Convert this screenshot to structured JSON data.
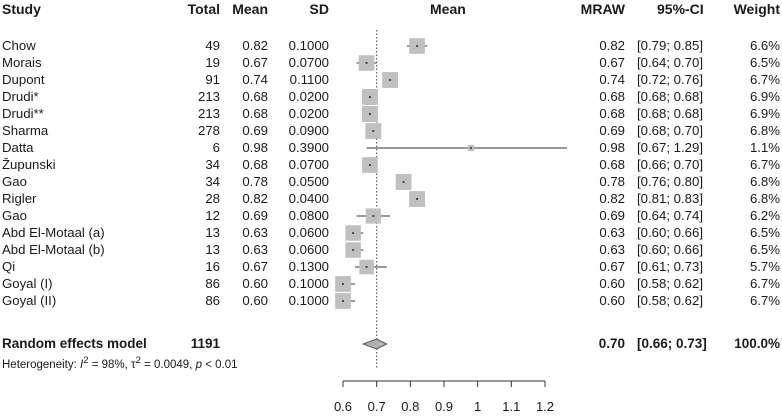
{
  "headers": {
    "study": "Study",
    "total": "Total",
    "mean": "Mean",
    "sd": "SD",
    "plot": "Mean",
    "mraw": "MRAW",
    "ci": "95%-CI",
    "weight": "Weight"
  },
  "studies": [
    {
      "study": "Chow",
      "total": "49",
      "mean": "0.82",
      "sd": "0.1000",
      "mraw": "0.82",
      "ci": "[0.79; 0.85]",
      "weight": "6.6%"
    },
    {
      "study": "Morais",
      "total": "19",
      "mean": "0.67",
      "sd": "0.0700",
      "mraw": "0.67",
      "ci": "[0.64; 0.70]",
      "weight": "6.5%"
    },
    {
      "study": "Dupont",
      "total": "91",
      "mean": "0.74",
      "sd": "0.1100",
      "mraw": "0.74",
      "ci": "[0.72; 0.76]",
      "weight": "6.7%"
    },
    {
      "study": "Drudi*",
      "total": "213",
      "mean": "0.68",
      "sd": "0.0200",
      "mraw": "0.68",
      "ci": "[0.68; 0.68]",
      "weight": "6.9%"
    },
    {
      "study": "Drudi**",
      "total": "213",
      "mean": "0.68",
      "sd": "0.0200",
      "mraw": "0.68",
      "ci": "[0.68; 0.68]",
      "weight": "6.9%"
    },
    {
      "study": "Sharma",
      "total": "278",
      "mean": "0.69",
      "sd": "0.0900",
      "mraw": "0.69",
      "ci": "[0.68; 0.70]",
      "weight": "6.8%"
    },
    {
      "study": "Datta",
      "total": "6",
      "mean": "0.98",
      "sd": "0.3900",
      "mraw": "0.98",
      "ci": "[0.67; 1.29]",
      "weight": "1.1%"
    },
    {
      "study": "Župunski",
      "total": "34",
      "mean": "0.68",
      "sd": "0.0700",
      "mraw": "0.68",
      "ci": "[0.66; 0.70]",
      "weight": "6.7%"
    },
    {
      "study": "Gao",
      "total": "34",
      "mean": "0.78",
      "sd": "0.0500",
      "mraw": "0.78",
      "ci": "[0.76; 0.80]",
      "weight": "6.8%"
    },
    {
      "study": "Rigler",
      "total": "28",
      "mean": "0.82",
      "sd": "0.0400",
      "mraw": "0.82",
      "ci": "[0.81; 0.83]",
      "weight": "6.8%"
    },
    {
      "study": "Gao",
      "total": "12",
      "mean": "0.69",
      "sd": "0.0800",
      "mraw": "0.69",
      "ci": "[0.64; 0.74]",
      "weight": "6.2%"
    },
    {
      "study": "Abd El-Motaal (a)",
      "total": "13",
      "mean": "0.63",
      "sd": "0.0600",
      "mraw": "0.63",
      "ci": "[0.60; 0.66]",
      "weight": "6.5%"
    },
    {
      "study": "Abd El-Motaal (b)",
      "total": "13",
      "mean": "0.63",
      "sd": "0.0600",
      "mraw": "0.63",
      "ci": "[0.60; 0.66]",
      "weight": "6.5%"
    },
    {
      "study": "Qi",
      "total": "16",
      "mean": "0.67",
      "sd": "0.1300",
      "mraw": "0.67",
      "ci": "[0.61; 0.73]",
      "weight": "5.7%"
    },
    {
      "study": "Goyal (I)",
      "total": "86",
      "mean": "0.60",
      "sd": "0.1000",
      "mraw": "0.60",
      "ci": "[0.58; 0.62]",
      "weight": "6.7%"
    },
    {
      "study": "Goyal (II)",
      "total": "86",
      "mean": "0.60",
      "sd": "0.1000",
      "mraw": "0.60",
      "ci": "[0.58; 0.62]",
      "weight": "6.7%"
    }
  ],
  "pooled": {
    "label": "Random effects model",
    "total": "1191",
    "mraw": "0.70",
    "ci": "[0.66; 0.73]",
    "weight": "100.0%"
  },
  "heterogeneity": {
    "prefix": "Heterogeneity: ",
    "i2_symbol": "I",
    "i2_value": " = 98%, ",
    "tau_symbol": "τ",
    "tau_value": " = 0.0049, ",
    "p_symbol": "p",
    "p_value": " < 0.01"
  },
  "chart_data": {
    "type": "forest",
    "title": "",
    "xlabel": "",
    "ylabel": "",
    "xlim": [
      0.6,
      1.2
    ],
    "ticks": [
      0.6,
      0.7,
      0.8,
      0.9,
      1,
      1.1,
      1.2
    ],
    "tick_labels": [
      "0.6",
      "0.7",
      "0.8",
      "0.9",
      "1",
      "1.1",
      "1.2"
    ],
    "reference_line": 0.7,
    "points": [
      {
        "study": "Chow",
        "mean": 0.82,
        "lower": 0.79,
        "upper": 0.85,
        "weight": 6.6
      },
      {
        "study": "Morais",
        "mean": 0.67,
        "lower": 0.64,
        "upper": 0.7,
        "weight": 6.5
      },
      {
        "study": "Dupont",
        "mean": 0.74,
        "lower": 0.72,
        "upper": 0.76,
        "weight": 6.7
      },
      {
        "study": "Drudi*",
        "mean": 0.68,
        "lower": 0.68,
        "upper": 0.68,
        "weight": 6.9
      },
      {
        "study": "Drudi**",
        "mean": 0.68,
        "lower": 0.68,
        "upper": 0.68,
        "weight": 6.9
      },
      {
        "study": "Sharma",
        "mean": 0.69,
        "lower": 0.68,
        "upper": 0.7,
        "weight": 6.8
      },
      {
        "study": "Datta",
        "mean": 0.98,
        "lower": 0.67,
        "upper": 1.29,
        "weight": 1.1
      },
      {
        "study": "Župunski",
        "mean": 0.68,
        "lower": 0.66,
        "upper": 0.7,
        "weight": 6.7
      },
      {
        "study": "Gao",
        "mean": 0.78,
        "lower": 0.76,
        "upper": 0.8,
        "weight": 6.8
      },
      {
        "study": "Rigler",
        "mean": 0.82,
        "lower": 0.81,
        "upper": 0.83,
        "weight": 6.8
      },
      {
        "study": "Gao",
        "mean": 0.69,
        "lower": 0.64,
        "upper": 0.74,
        "weight": 6.2
      },
      {
        "study": "Abd El-Motaal (a)",
        "mean": 0.63,
        "lower": 0.6,
        "upper": 0.66,
        "weight": 6.5
      },
      {
        "study": "Abd El-Motaal (b)",
        "mean": 0.63,
        "lower": 0.6,
        "upper": 0.66,
        "weight": 6.5
      },
      {
        "study": "Qi",
        "mean": 0.67,
        "lower": 0.61,
        "upper": 0.73,
        "weight": 5.7
      },
      {
        "study": "Goyal (I)",
        "mean": 0.6,
        "lower": 0.58,
        "upper": 0.62,
        "weight": 6.7
      },
      {
        "study": "Goyal (II)",
        "mean": 0.6,
        "lower": 0.58,
        "upper": 0.62,
        "weight": 6.7
      }
    ],
    "pooled": {
      "label": "Random effects model",
      "mean": 0.7,
      "lower": 0.66,
      "upper": 0.73
    }
  },
  "colors": {
    "box": "#c0c0c0",
    "line": "#333333",
    "diamond": "#b0b0b0"
  }
}
